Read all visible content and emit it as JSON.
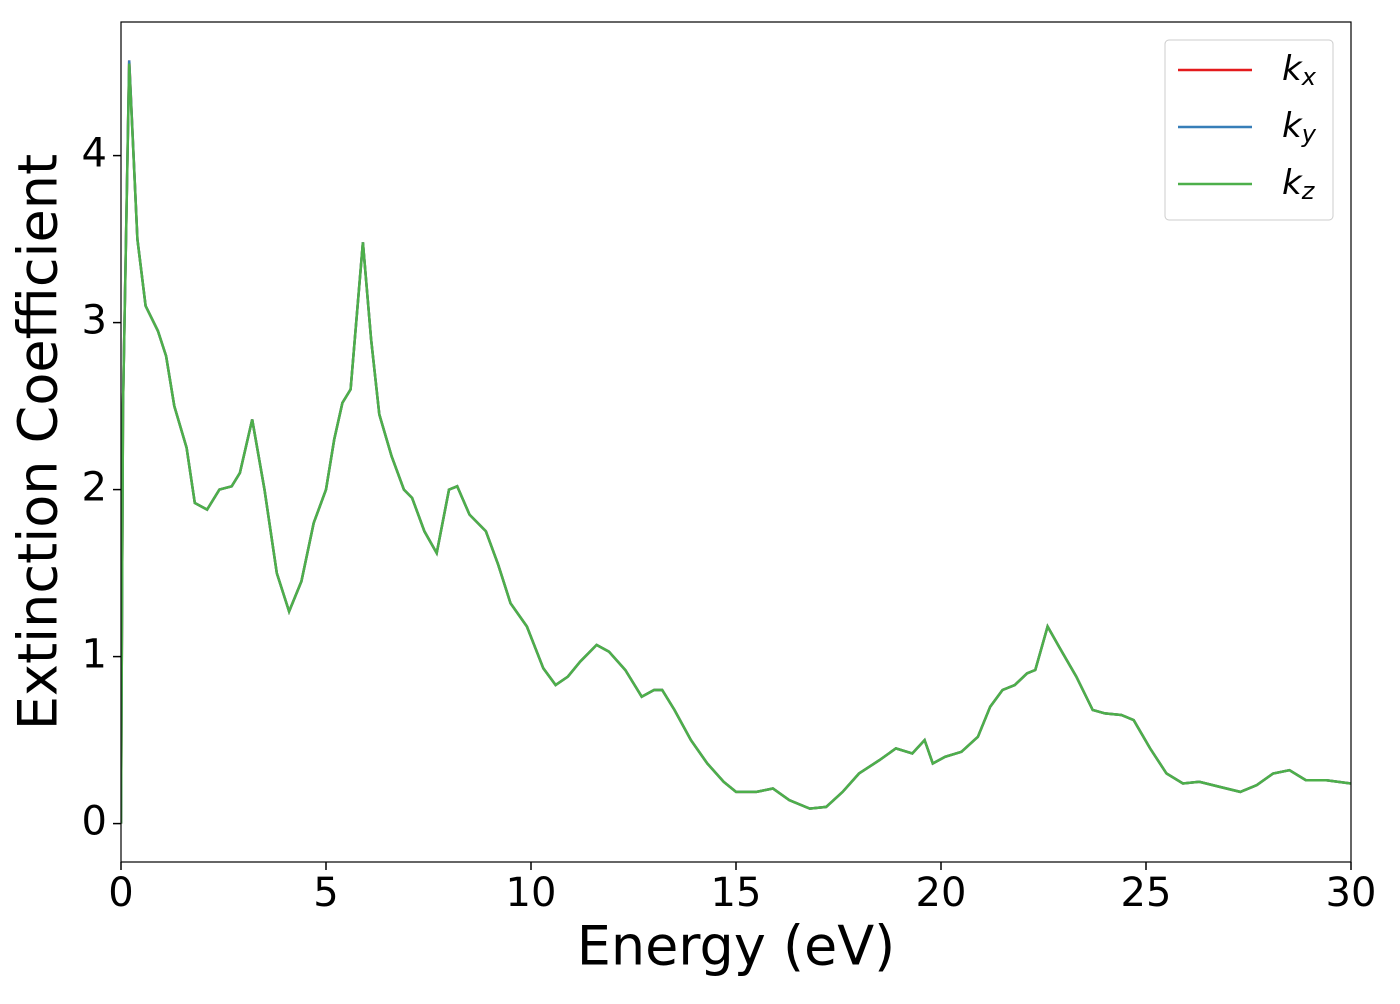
{
  "chart_data": {
    "type": "line",
    "x_label": "Energy (eV)",
    "y_label": "Extinction Coefficient",
    "x": [
      0,
      0.05,
      0.2,
      0.4,
      0.6,
      0.9,
      1.1,
      1.3,
      1.6,
      1.8,
      2.1,
      2.4,
      2.7,
      2.9,
      3.2,
      3.5,
      3.8,
      4.1,
      4.4,
      4.7,
      5.0,
      5.2,
      5.4,
      5.6,
      5.9,
      6.1,
      6.3,
      6.6,
      6.9,
      7.1,
      7.4,
      7.7,
      8.0,
      8.2,
      8.5,
      8.9,
      9.2,
      9.5,
      9.9,
      10.3,
      10.6,
      10.9,
      11.2,
      11.6,
      11.9,
      12.3,
      12.7,
      13.0,
      13.2,
      13.5,
      13.9,
      14.3,
      14.7,
      15.0,
      15.5,
      15.9,
      16.3,
      16.8,
      17.2,
      17.6,
      18.0,
      18.5,
      18.9,
      19.3,
      19.6,
      19.8,
      20.1,
      20.5,
      20.9,
      21.2,
      21.5,
      21.8,
      22.1,
      22.3,
      22.6,
      22.9,
      23.3,
      23.7,
      24.0,
      24.4,
      24.7,
      25.1,
      25.5,
      25.9,
      26.3,
      26.8,
      27.3,
      27.7,
      28.1,
      28.5,
      28.9,
      29.4,
      30
    ],
    "series": [
      {
        "name": "kx",
        "color": "#e41a1c",
        "values": [
          0,
          2.5,
          4.57,
          3.5,
          3.1,
          2.95,
          2.8,
          2.5,
          2.25,
          1.92,
          1.88,
          2.0,
          2.02,
          2.1,
          2.42,
          2.0,
          1.5,
          1.27,
          1.45,
          1.8,
          2.0,
          2.3,
          2.52,
          2.6,
          3.48,
          2.9,
          2.45,
          2.2,
          2.0,
          1.95,
          1.75,
          1.62,
          2.0,
          2.02,
          1.85,
          1.75,
          1.55,
          1.32,
          1.18,
          0.93,
          0.83,
          0.88,
          0.97,
          1.07,
          1.03,
          0.92,
          0.76,
          0.8,
          0.8,
          0.68,
          0.5,
          0.36,
          0.25,
          0.19,
          0.19,
          0.21,
          0.14,
          0.09,
          0.1,
          0.19,
          0.3,
          0.38,
          0.45,
          0.42,
          0.5,
          0.36,
          0.4,
          0.43,
          0.52,
          0.7,
          0.8,
          0.83,
          0.9,
          0.92,
          1.18,
          1.05,
          0.88,
          0.68,
          0.66,
          0.65,
          0.62,
          0.45,
          0.3,
          0.24,
          0.25,
          0.22,
          0.19,
          0.23,
          0.3,
          0.32,
          0.26,
          0.26,
          0.24
        ]
      },
      {
        "name": "ky",
        "color": "#377eb8",
        "values": [
          0,
          2.5,
          4.57,
          3.5,
          3.1,
          2.95,
          2.8,
          2.5,
          2.25,
          1.92,
          1.88,
          2.0,
          2.02,
          2.1,
          2.42,
          2.0,
          1.5,
          1.27,
          1.45,
          1.8,
          2.0,
          2.3,
          2.52,
          2.6,
          3.48,
          2.9,
          2.45,
          2.2,
          2.0,
          1.95,
          1.75,
          1.62,
          2.0,
          2.02,
          1.85,
          1.75,
          1.55,
          1.32,
          1.18,
          0.93,
          0.83,
          0.88,
          0.97,
          1.07,
          1.03,
          0.92,
          0.76,
          0.8,
          0.8,
          0.68,
          0.5,
          0.36,
          0.25,
          0.19,
          0.19,
          0.21,
          0.14,
          0.09,
          0.1,
          0.19,
          0.3,
          0.38,
          0.45,
          0.42,
          0.5,
          0.36,
          0.4,
          0.43,
          0.52,
          0.7,
          0.8,
          0.83,
          0.9,
          0.92,
          1.18,
          1.05,
          0.88,
          0.68,
          0.66,
          0.65,
          0.62,
          0.45,
          0.3,
          0.24,
          0.25,
          0.22,
          0.19,
          0.23,
          0.3,
          0.32,
          0.26,
          0.26,
          0.24
        ]
      },
      {
        "name": "kz",
        "color": "#4daf4a",
        "values": [
          0,
          2.5,
          4.55,
          3.5,
          3.1,
          2.95,
          2.8,
          2.5,
          2.25,
          1.92,
          1.88,
          2.0,
          2.02,
          2.1,
          2.42,
          2.0,
          1.5,
          1.27,
          1.45,
          1.8,
          2.0,
          2.3,
          2.52,
          2.6,
          3.48,
          2.9,
          2.45,
          2.2,
          2.0,
          1.95,
          1.75,
          1.62,
          2.0,
          2.02,
          1.85,
          1.75,
          1.55,
          1.32,
          1.18,
          0.93,
          0.83,
          0.88,
          0.97,
          1.07,
          1.03,
          0.92,
          0.76,
          0.8,
          0.8,
          0.68,
          0.5,
          0.36,
          0.25,
          0.19,
          0.19,
          0.21,
          0.14,
          0.09,
          0.1,
          0.19,
          0.3,
          0.38,
          0.45,
          0.42,
          0.5,
          0.36,
          0.4,
          0.43,
          0.52,
          0.7,
          0.8,
          0.83,
          0.9,
          0.92,
          1.18,
          1.05,
          0.88,
          0.68,
          0.66,
          0.65,
          0.62,
          0.45,
          0.3,
          0.24,
          0.25,
          0.22,
          0.19,
          0.23,
          0.3,
          0.32,
          0.26,
          0.26,
          0.24
        ]
      }
    ],
    "xlim": [
      0,
      30
    ],
    "xticks": [
      0,
      5,
      10,
      15,
      20,
      25,
      30
    ],
    "ylim": [
      -0.23,
      4.8
    ],
    "yticks": [
      0,
      1,
      2,
      3,
      4
    ],
    "legend": "upper-right"
  }
}
